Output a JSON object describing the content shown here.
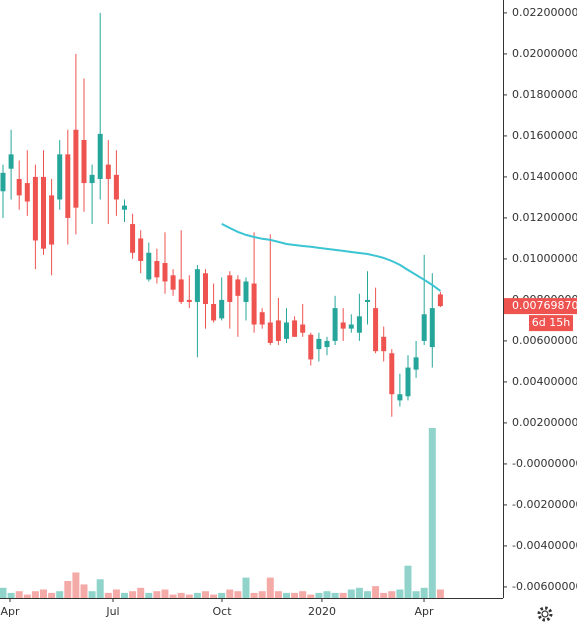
{
  "chart_data": {
    "type": "candlestick",
    "up_color": "#26a69a",
    "down_color": "#ef5350",
    "volume_up_color": "#8fd3cb",
    "volume_down_color": "#f4aaa7",
    "open": [
      0.0133,
      0.0144,
      0.0139,
      0.0137,
      0.014,
      0.014,
      0.0131,
      0.0129,
      0.0151,
      0.0163,
      0.0158,
      0.0137,
      0.0139,
      0.0146,
      0.0141,
      0.0124,
      0.0117,
      0.011,
      0.009,
      0.0099,
      0.0098,
      0.0092,
      0.009,
      0.008,
      0.0079,
      0.0093,
      0.0078,
      0.0071,
      0.0092,
      0.009,
      0.0079,
      0.0088,
      0.0074,
      0.0069,
      0.007,
      0.0061,
      0.007,
      0.0068,
      0.0063,
      0.0056,
      0.0057,
      0.006,
      0.0069,
      0.0066,
      0.0064,
      0.0079,
      0.0076,
      0.0062,
      0.0054,
      0.0031,
      0.0033,
      0.0046,
      0.006,
      0.0057,
      0.00827
    ],
    "high": [
      0.0146,
      0.0163,
      0.0148,
      0.0153,
      0.0146,
      0.0153,
      0.0139,
      0.0158,
      0.0163,
      0.02,
      0.0188,
      0.0146,
      0.022,
      0.0158,
      0.0153,
      0.0129,
      0.0122,
      0.0114,
      0.0108,
      0.0105,
      0.0113,
      0.0095,
      0.0114,
      0.0092,
      0.0097,
      0.0095,
      0.0088,
      0.0091,
      0.0094,
      0.0092,
      0.0091,
      0.0113,
      0.0076,
      0.0112,
      0.0081,
      0.0076,
      0.0072,
      0.0078,
      0.0064,
      0.0064,
      0.0062,
      0.0082,
      0.0076,
      0.0073,
      0.0083,
      0.0094,
      0.0086,
      0.0067,
      0.0056,
      0.0044,
      0.0053,
      0.006,
      0.0102,
      0.0093,
      0.0084
    ],
    "low": [
      0.012,
      0.0129,
      0.0124,
      0.0121,
      0.0095,
      0.0102,
      0.0092,
      0.0124,
      0.0107,
      0.0112,
      0.0123,
      0.0117,
      0.0129,
      0.0117,
      0.0121,
      0.0118,
      0.01,
      0.0093,
      0.0089,
      0.0088,
      0.0083,
      0.0082,
      0.0078,
      0.0076,
      0.0052,
      0.0066,
      0.0069,
      0.007,
      0.0066,
      0.0062,
      0.007,
      0.0064,
      0.0066,
      0.0058,
      0.0058,
      0.0059,
      0.0062,
      0.0062,
      0.0048,
      0.005,
      0.0053,
      0.0058,
      0.006,
      0.0064,
      0.006,
      0.0068,
      0.0054,
      0.005,
      0.0023,
      0.0028,
      0.0031,
      0.0042,
      0.0058,
      0.0047,
      0.00765
    ],
    "close": [
      0.0142,
      0.0151,
      0.0131,
      0.0128,
      0.0109,
      0.0105,
      0.0107,
      0.0151,
      0.012,
      0.0125,
      0.0137,
      0.0141,
      0.0161,
      0.0139,
      0.0129,
      0.0126,
      0.0103,
      0.0099,
      0.0103,
      0.0091,
      0.0089,
      0.0085,
      0.0079,
      0.0079,
      0.0095,
      0.0078,
      0.007,
      0.008,
      0.0079,
      0.0082,
      0.0089,
      0.0068,
      0.0068,
      0.0059,
      0.006,
      0.0069,
      0.0062,
      0.0064,
      0.0051,
      0.0061,
      0.006,
      0.0076,
      0.0066,
      0.0068,
      0.0072,
      0.008,
      0.0055,
      0.0055,
      0.0034,
      0.0034,
      0.0047,
      0.0052,
      0.0073,
      0.0076,
      0.0076987
    ],
    "volume": [
      6,
      3,
      4,
      2,
      4,
      5,
      3,
      4,
      10,
      15,
      8,
      4,
      11,
      3,
      5,
      3,
      4,
      6,
      3,
      4,
      5,
      2,
      3,
      2,
      3,
      4,
      2,
      3,
      5,
      4,
      12,
      3,
      4,
      12,
      4,
      3,
      3,
      4,
      2,
      3,
      4,
      3,
      3,
      5,
      6,
      4,
      7,
      3,
      4,
      5,
      19,
      4,
      6,
      100,
      5
    ],
    "volume_lim": [
      0,
      100
    ],
    "ma": {
      "color": "#3bc4d3",
      "values": [
        null,
        null,
        null,
        null,
        null,
        null,
        null,
        null,
        null,
        null,
        null,
        null,
        null,
        null,
        null,
        null,
        null,
        null,
        null,
        null,
        null,
        null,
        null,
        null,
        null,
        null,
        null,
        0.01171,
        0.01151,
        0.01132,
        0.01117,
        0.01107,
        0.01098,
        0.01093,
        0.01083,
        0.01073,
        0.01068,
        0.01063,
        0.01059,
        0.01054,
        0.01049,
        0.01044,
        0.01039,
        0.01034,
        0.01029,
        0.01024,
        0.01015,
        0.01005,
        0.0099,
        0.00971,
        0.00946,
        0.00922,
        0.00898,
        0.00873,
        0.00844
      ]
    },
    "xlim": [
      -0.37,
      61.73
    ],
    "xticks": [
      {
        "value": 0.86,
        "label": "Apr"
      },
      {
        "value": 13.58,
        "label": "Jul"
      },
      {
        "value": 27.04,
        "label": "Oct"
      },
      {
        "value": 39.38,
        "label": "2020"
      },
      {
        "value": 51.98,
        "label": "Apr"
      }
    ],
    "ylim": [
      -0.00654,
      0.02263
    ],
    "yticks": [
      {
        "value": 0.022,
        "label": "0.02200000"
      },
      {
        "value": 0.02,
        "label": "0.02000000"
      },
      {
        "value": 0.018,
        "label": "0.01800000"
      },
      {
        "value": 0.016,
        "label": "0.01600000"
      },
      {
        "value": 0.014,
        "label": "0.01400000"
      },
      {
        "value": 0.012,
        "label": "0.01200000"
      },
      {
        "value": 0.01,
        "label": "0.01000000"
      },
      {
        "value": 0.008,
        "label": "0.00800000"
      },
      {
        "value": 0.006,
        "label": "0.00600000"
      },
      {
        "value": 0.004,
        "label": "0.00400000"
      },
      {
        "value": 0.002,
        "label": "0.00200000"
      },
      {
        "value": 0,
        "label": "-0.00000000"
      },
      {
        "value": -0.002,
        "label": "-0.00200000"
      },
      {
        "value": -0.004,
        "label": "-0.00400000"
      },
      {
        "value": -0.006,
        "label": "-0.00600000"
      }
    ],
    "last_price_label": "0.00769870",
    "countdown": "6d 15h"
  }
}
